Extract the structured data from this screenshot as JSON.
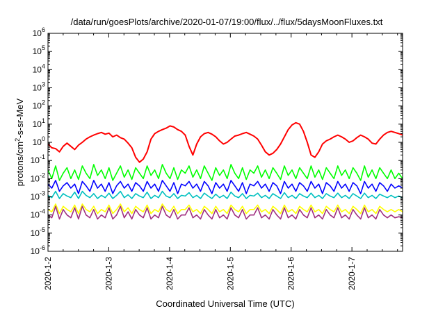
{
  "chart_data": {
    "type": "line",
    "title": "/data/run/goesPlots/archive/2020-01-07/19:00/flux/../flux/5daysMoonFluxes.txt",
    "xlabel": "Coordinated Universal Time (UTC)",
    "ylabel": "protons/cm²-s-sr-MeV",
    "ylabel_parts": {
      "pre": "protons/cm",
      "sup": "2",
      "post": "-s-sr-MeV"
    },
    "yscale": "log",
    "ylim_exp": [
      -6,
      6
    ],
    "ylim": [
      1e-06,
      1000000
    ],
    "y_tick_exponents": [
      "-6",
      "-5",
      "-4",
      "-3",
      "-2",
      "-1",
      "0",
      "1",
      "2",
      "3",
      "4",
      "5",
      "6"
    ],
    "xlim": [
      "2020-01-02",
      "2020-01-07 20:00"
    ],
    "x_ticks": [
      "2020-1-2",
      "2020-1-3",
      "2020-1-4",
      "2020-1-5",
      "2020-1-6",
      "2020-1-7"
    ],
    "grid": false,
    "legend": "none",
    "series": [
      {
        "color": "#ff0000",
        "values": [
          0.8,
          0.5,
          0.45,
          0.3,
          0.6,
          0.9,
          0.6,
          0.4,
          0.7,
          1.0,
          1.5,
          2.0,
          2.5,
          3.0,
          3.5,
          2.8,
          3.2,
          2.0,
          2.5,
          1.8,
          1.5,
          0.9,
          0.5,
          0.15,
          0.08,
          0.12,
          0.3,
          1.5,
          3.0,
          4.0,
          5.0,
          6.0,
          8.0,
          7.0,
          5.0,
          4.0,
          2.5,
          0.6,
          0.2,
          0.8,
          2.0,
          3.0,
          3.5,
          2.8,
          2.0,
          1.2,
          0.8,
          1.0,
          1.5,
          2.2,
          2.5,
          3.0,
          3.5,
          2.8,
          2.2,
          1.5,
          0.7,
          0.3,
          0.2,
          0.25,
          0.4,
          0.8,
          2.0,
          5.0,
          9.0,
          12.0,
          10.0,
          4.0,
          1.0,
          0.2,
          0.15,
          0.3,
          0.8,
          1.2,
          1.5,
          2.0,
          2.5,
          2.0,
          1.5,
          1.0,
          1.2,
          1.8,
          2.5,
          2.0,
          1.5,
          0.9,
          0.8,
          1.5,
          2.5,
          3.5,
          4.0,
          3.5,
          3.0,
          2.5
        ]
      },
      {
        "color": "#00ff00",
        "values": [
          0.03,
          0.01,
          0.05,
          0.008,
          0.02,
          0.04,
          0.01,
          0.03,
          0.009,
          0.05,
          0.02,
          0.01,
          0.06,
          0.015,
          0.03,
          0.01,
          0.04,
          0.008,
          0.02,
          0.05,
          0.012,
          0.03,
          0.009,
          0.04,
          0.02,
          0.01,
          0.05,
          0.015,
          0.03,
          0.01,
          0.06,
          0.02,
          0.01,
          0.04,
          0.009,
          0.03,
          0.02,
          0.05,
          0.012,
          0.03,
          0.01,
          0.05,
          0.02,
          0.008,
          0.04,
          0.015,
          0.03,
          0.01,
          0.06,
          0.02,
          0.01,
          0.04,
          0.009,
          0.03,
          0.02,
          0.05,
          0.012,
          0.03,
          0.01,
          0.04,
          0.02,
          0.009,
          0.05,
          0.015,
          0.03,
          0.01,
          0.04,
          0.02,
          0.01,
          0.05,
          0.012,
          0.03,
          0.009,
          0.04,
          0.02,
          0.01,
          0.05,
          0.015,
          0.03,
          0.01,
          0.04,
          0.02,
          0.008,
          0.05,
          0.012,
          0.03,
          0.01,
          0.04,
          0.02,
          0.01,
          0.03,
          0.01,
          0.02,
          0.01
        ]
      },
      {
        "color": "#0000ff",
        "values": [
          0.005,
          0.003,
          0.008,
          0.002,
          0.004,
          0.006,
          0.003,
          0.005,
          0.0015,
          0.007,
          0.004,
          0.002,
          0.008,
          0.003,
          0.005,
          0.002,
          0.006,
          0.0015,
          0.004,
          0.007,
          0.003,
          0.005,
          0.002,
          0.006,
          0.004,
          0.002,
          0.007,
          0.003,
          0.005,
          0.002,
          0.008,
          0.004,
          0.002,
          0.006,
          0.0015,
          0.005,
          0.004,
          0.007,
          0.003,
          0.005,
          0.002,
          0.007,
          0.004,
          0.0015,
          0.006,
          0.003,
          0.005,
          0.002,
          0.008,
          0.004,
          0.002,
          0.006,
          0.0015,
          0.005,
          0.004,
          0.007,
          0.003,
          0.005,
          0.002,
          0.006,
          0.004,
          0.0015,
          0.007,
          0.003,
          0.005,
          0.002,
          0.006,
          0.004,
          0.002,
          0.007,
          0.003,
          0.005,
          0.0015,
          0.006,
          0.004,
          0.002,
          0.007,
          0.003,
          0.005,
          0.002,
          0.006,
          0.004,
          0.0015,
          0.007,
          0.003,
          0.005,
          0.002,
          0.006,
          0.004,
          0.002,
          0.005,
          0.003,
          0.004,
          0.003
        ]
      },
      {
        "color": "#00c0c0",
        "values": [
          0.0012,
          0.0009,
          0.002,
          0.0008,
          0.0015,
          0.0011,
          0.0009,
          0.0018,
          0.0008,
          0.002,
          0.0012,
          0.0009,
          0.0015,
          0.0008,
          0.0012,
          0.0009,
          0.0016,
          0.0008,
          0.0012,
          0.002,
          0.0009,
          0.0013,
          0.0008,
          0.0015,
          0.0011,
          0.0009,
          0.0018,
          0.0008,
          0.0012,
          0.0009,
          0.002,
          0.0011,
          0.0009,
          0.0015,
          0.0008,
          0.0012,
          0.0011,
          0.0017,
          0.0009,
          0.0012,
          0.0008,
          0.0016,
          0.0011,
          0.0008,
          0.0014,
          0.0009,
          0.0012,
          0.0008,
          0.0018,
          0.0011,
          0.0009,
          0.0015,
          0.0008,
          0.0012,
          0.0011,
          0.0016,
          0.0009,
          0.0012,
          0.0008,
          0.0015,
          0.0011,
          0.0008,
          0.0017,
          0.0009,
          0.0012,
          0.0008,
          0.0015,
          0.0011,
          0.0009,
          0.0016,
          0.0009,
          0.0012,
          0.0008,
          0.0015,
          0.0011,
          0.0009,
          0.0016,
          0.0009,
          0.0012,
          0.0008,
          0.0015,
          0.0011,
          0.0008,
          0.0016,
          0.0009,
          0.0012,
          0.0008,
          0.0014,
          0.0011,
          0.0009,
          0.0012,
          0.0009,
          0.0011,
          0.0009
        ]
      },
      {
        "color": "#ffff00",
        "values": [
          0.0002,
          0.00015,
          0.0004,
          0.00012,
          0.0003,
          0.0002,
          0.00015,
          0.00035,
          0.00012,
          0.0004,
          0.0002,
          0.00015,
          0.0003,
          0.00012,
          0.0002,
          0.00015,
          0.00035,
          0.00012,
          0.0002,
          0.0004,
          0.00015,
          0.00025,
          0.00012,
          0.0003,
          0.0002,
          0.00015,
          0.00035,
          0.00012,
          0.0002,
          0.00015,
          0.0004,
          0.0002,
          0.00015,
          0.0003,
          0.00012,
          0.0002,
          0.0002,
          0.00035,
          0.00015,
          0.0002,
          0.00012,
          0.0003,
          0.0002,
          0.00012,
          0.0003,
          0.00015,
          0.0002,
          0.00012,
          0.00035,
          0.0002,
          0.00015,
          0.0003,
          0.00012,
          0.0002,
          0.0002,
          0.00035,
          0.00015,
          0.0002,
          0.00012,
          0.0003,
          0.0002,
          0.00012,
          0.00035,
          0.00015,
          0.0002,
          0.00012,
          0.0003,
          0.0002,
          0.00015,
          0.00035,
          0.00015,
          0.0002,
          0.00012,
          0.0003,
          0.0002,
          0.00015,
          0.00035,
          0.00015,
          0.0002,
          0.00012,
          0.0003,
          0.0002,
          0.00012,
          0.00035,
          0.00015,
          0.0002,
          0.00012,
          0.0003,
          0.0002,
          0.00015,
          0.0002,
          0.00015,
          0.0002,
          0.00015
        ]
      },
      {
        "color": "#a03080",
        "values": [
          0.0001,
          7e-05,
          0.0003,
          6e-05,
          0.0002,
          0.0001,
          7e-05,
          0.00025,
          6e-05,
          0.0003,
          0.0001,
          7e-05,
          0.0002,
          6e-05,
          0.0001,
          7e-05,
          0.00025,
          6e-05,
          0.0001,
          0.0003,
          7e-05,
          0.00015,
          6e-05,
          0.0002,
          0.0001,
          7e-05,
          0.00025,
          6e-05,
          0.0001,
          7e-05,
          0.0003,
          0.0001,
          7e-05,
          0.0002,
          6e-05,
          0.0001,
          0.0001,
          0.00025,
          7e-05,
          0.0001,
          6e-05,
          0.0002,
          0.0001,
          6e-05,
          0.0002,
          7e-05,
          0.0001,
          6e-05,
          0.00025,
          0.0001,
          7e-05,
          0.0002,
          6e-05,
          0.0001,
          0.0001,
          0.00025,
          7e-05,
          0.0001,
          6e-05,
          0.0002,
          0.0001,
          6e-05,
          0.00025,
          7e-05,
          0.0001,
          6e-05,
          0.0002,
          0.0001,
          7e-05,
          0.00025,
          7e-05,
          0.0001,
          6e-05,
          0.0002,
          0.0001,
          7e-05,
          0.00025,
          7e-05,
          0.0001,
          6e-05,
          0.0002,
          0.0001,
          6e-05,
          0.00025,
          7e-05,
          0.0001,
          6e-05,
          0.0002,
          0.0001,
          7e-05,
          0.0001,
          7e-05,
          8e-05,
          7e-05
        ]
      }
    ]
  }
}
